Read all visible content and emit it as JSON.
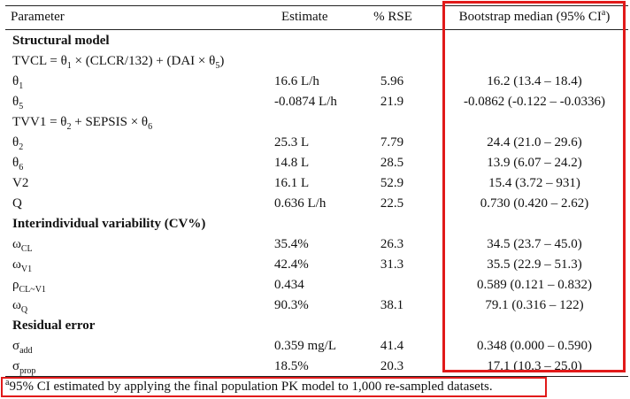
{
  "table": {
    "header": {
      "parameter": "Parameter",
      "estimate": "Estimate",
      "rse": "% RSE",
      "bootstrap_prefix": "Bootstrap median (95% CI",
      "bootstrap_sup": "a",
      "bootstrap_suffix": ")"
    },
    "sections": {
      "structural": "Structural model",
      "iiv": "Interindividual variability (CV%)",
      "residual": "Residual error"
    },
    "formulas": {
      "tvcl": {
        "a": "TVCL = θ",
        "s1": "1",
        "b": " × (CLCR/132) + (DAI × θ",
        "s2": "5",
        "c": ")"
      },
      "tvv1": {
        "a": "TVV1 = θ",
        "s1": "2",
        "b": " + SEPSIS × θ",
        "s2": "6"
      }
    },
    "rows": {
      "theta1": {
        "sym": "θ",
        "sub": "1",
        "estimate": "16.6 L/h",
        "rse": "5.96",
        "bootstrap": "16.2 (13.4 – 18.4)"
      },
      "theta5": {
        "sym": "θ",
        "sub": "5",
        "estimate": "-0.0874 L/h",
        "rse": "21.9",
        "bootstrap": "-0.0862 (-0.122 – -0.0336)"
      },
      "theta2": {
        "sym": "θ",
        "sub": "2",
        "estimate": "25.3 L",
        "rse": "7.79",
        "bootstrap": "24.4 (21.0 – 29.6)"
      },
      "theta6": {
        "sym": "θ",
        "sub": "6",
        "estimate": "14.8 L",
        "rse": "28.5",
        "bootstrap": "13.9 (6.07 – 24.2)"
      },
      "v2": {
        "sym": "V2",
        "sub": "",
        "estimate": "16.1 L",
        "rse": "52.9",
        "bootstrap": "15.4 (3.72 – 931)"
      },
      "q": {
        "sym": "Q",
        "sub": "",
        "estimate": "0.636 L/h",
        "rse": "22.5",
        "bootstrap": "0.730 (0.420 – 2.62)"
      },
      "omega_cl": {
        "sym": "ω",
        "sub": "CL",
        "estimate": "35.4%",
        "rse": "26.3",
        "bootstrap": "34.5 (23.7 – 45.0)"
      },
      "omega_v1": {
        "sym": "ω",
        "sub": "V1",
        "estimate": "42.4%",
        "rse": "31.3",
        "bootstrap": "35.5 (22.9 – 51.3)"
      },
      "rho": {
        "sym": "ρ",
        "sub": "CL~V1",
        "estimate": "0.434",
        "rse": "",
        "bootstrap": "0.589 (0.121 – 0.832)"
      },
      "omega_q": {
        "sym": "ω",
        "sub": "Q",
        "estimate": "90.3%",
        "rse": "38.1",
        "bootstrap": "79.1 (0.316 – 122)"
      },
      "sigma_add": {
        "sym": "σ",
        "sub": "add",
        "estimate": "0.359 mg/L",
        "rse": "41.4",
        "bootstrap": "0.348 (0.000 – 0.590)"
      },
      "sigma_prop": {
        "sym": "σ",
        "sub": "prop",
        "estimate": "18.5%",
        "rse": "20.3",
        "bootstrap": "17.1 (10.3 – 25.0)"
      }
    }
  },
  "footnote": {
    "sup": "a",
    "text": "95% CI estimated by applying the final population PK model to 1,000 re-sampled datasets."
  },
  "colors": {
    "highlight": "#e11a1a",
    "rule": "#222222",
    "text": "#111111"
  }
}
